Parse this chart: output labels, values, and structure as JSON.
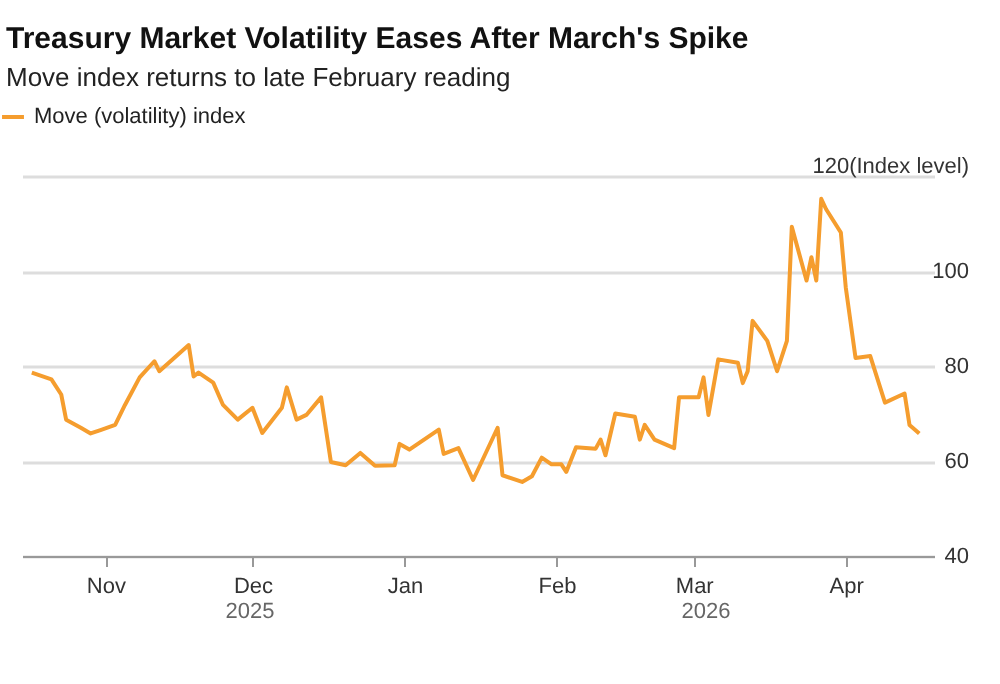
{
  "chart_data": {
    "type": "line",
    "title": "Treasury Market Volatility Eases After March's Spike",
    "subtitle": "Move index returns to late February reading",
    "x": [
      "2025-10-17",
      "2025-10-21",
      "2025-10-23",
      "2025-10-24",
      "2025-10-27",
      "2025-10-29",
      "2025-10-31",
      "2025-11-03",
      "2025-11-05",
      "2025-11-08",
      "2025-11-11",
      "2025-11-12",
      "2025-11-18",
      "2025-11-19",
      "2025-11-20",
      "2025-11-23",
      "2025-11-25",
      "2025-11-28",
      "2025-12-01",
      "2025-12-03",
      "2025-12-07",
      "2025-12-08",
      "2025-12-10",
      "2025-12-12",
      "2025-12-15",
      "2025-12-17",
      "2025-12-20",
      "2025-12-23",
      "2025-12-26",
      "2025-12-30",
      "2025-12-31",
      "2026-01-02",
      "2026-01-08",
      "2026-01-09",
      "2026-01-12",
      "2026-01-15",
      "2026-01-20",
      "2026-01-21",
      "2026-01-25",
      "2026-01-27",
      "2026-01-29",
      "2026-01-31",
      "2026-02-02",
      "2026-02-03",
      "2026-02-05",
      "2026-02-09",
      "2026-02-10",
      "2026-02-11",
      "2026-02-13",
      "2026-02-17",
      "2026-02-18",
      "2026-02-19",
      "2026-02-21",
      "2026-02-25",
      "2026-02-26",
      "2026-03-02",
      "2026-03-03",
      "2026-03-04",
      "2026-03-06",
      "2026-03-10",
      "2026-03-11",
      "2026-03-12",
      "2026-03-13",
      "2026-03-16",
      "2026-03-18",
      "2026-03-20",
      "2026-03-21",
      "2026-03-24",
      "2026-03-25",
      "2026-03-26",
      "2026-03-27",
      "2026-03-28",
      "2026-03-31",
      "2026-04-01",
      "2026-04-03",
      "2026-04-06",
      "2026-04-09",
      "2026-04-13",
      "2026-04-14",
      "2026-04-16"
    ],
    "series": [
      {
        "name": "Move (volatility) index",
        "color": "#f59d2e",
        "values": [
          78.6,
          77.2,
          74,
          68.7,
          67,
          65.8,
          66.5,
          67.6,
          71.8,
          77.6,
          81,
          78.9,
          84.4,
          77.8,
          78.6,
          76.5,
          71.8,
          68.7,
          71.2,
          65.9,
          71.2,
          75.5,
          68.7,
          69.7,
          73.4,
          59.8,
          59.1,
          61.7,
          59,
          59.1,
          63.6,
          62.4,
          66.6,
          61.5,
          62.7,
          56,
          67,
          57,
          55.6,
          56.8,
          60.7,
          59.3,
          59.3,
          57.7,
          62.9,
          62.6,
          64.5,
          61.2,
          70,
          69.3,
          64.5,
          67.6,
          64.5,
          62.7,
          73.4,
          73.4,
          77.6,
          69.7,
          81.4,
          80.7,
          76.4,
          78.9,
          89.5,
          85.3,
          78.9,
          85.3,
          109.3,
          98,
          102.9,
          98,
          115.2,
          113,
          108.1,
          96.6,
          81.7,
          82.1,
          72.3,
          74.2,
          67.6,
          65.8
        ]
      }
    ],
    "xlim": [
      "2025-10-15",
      "2026-04-19"
    ],
    "xticks": [
      {
        "value": "2025-11-01",
        "label": "Nov"
      },
      {
        "value": "2025-12-01",
        "label": "Dec"
      },
      {
        "value": "2026-01-01",
        "label": "Jan"
      },
      {
        "value": "2026-02-01",
        "label": "Feb"
      },
      {
        "value": "2026-03-01",
        "label": "Mar"
      },
      {
        "value": "2026-04-01",
        "label": "Apr"
      }
    ],
    "ylim": [
      40,
      120
    ],
    "yticks": [
      40,
      60,
      80,
      100,
      {
        "value": 120,
        "label": "120(Index level)"
      }
    ],
    "annotations": [
      "2025",
      "2026"
    ],
    "grid": "y",
    "legend": "top left",
    "line_style": "solid",
    "marker": "none"
  }
}
